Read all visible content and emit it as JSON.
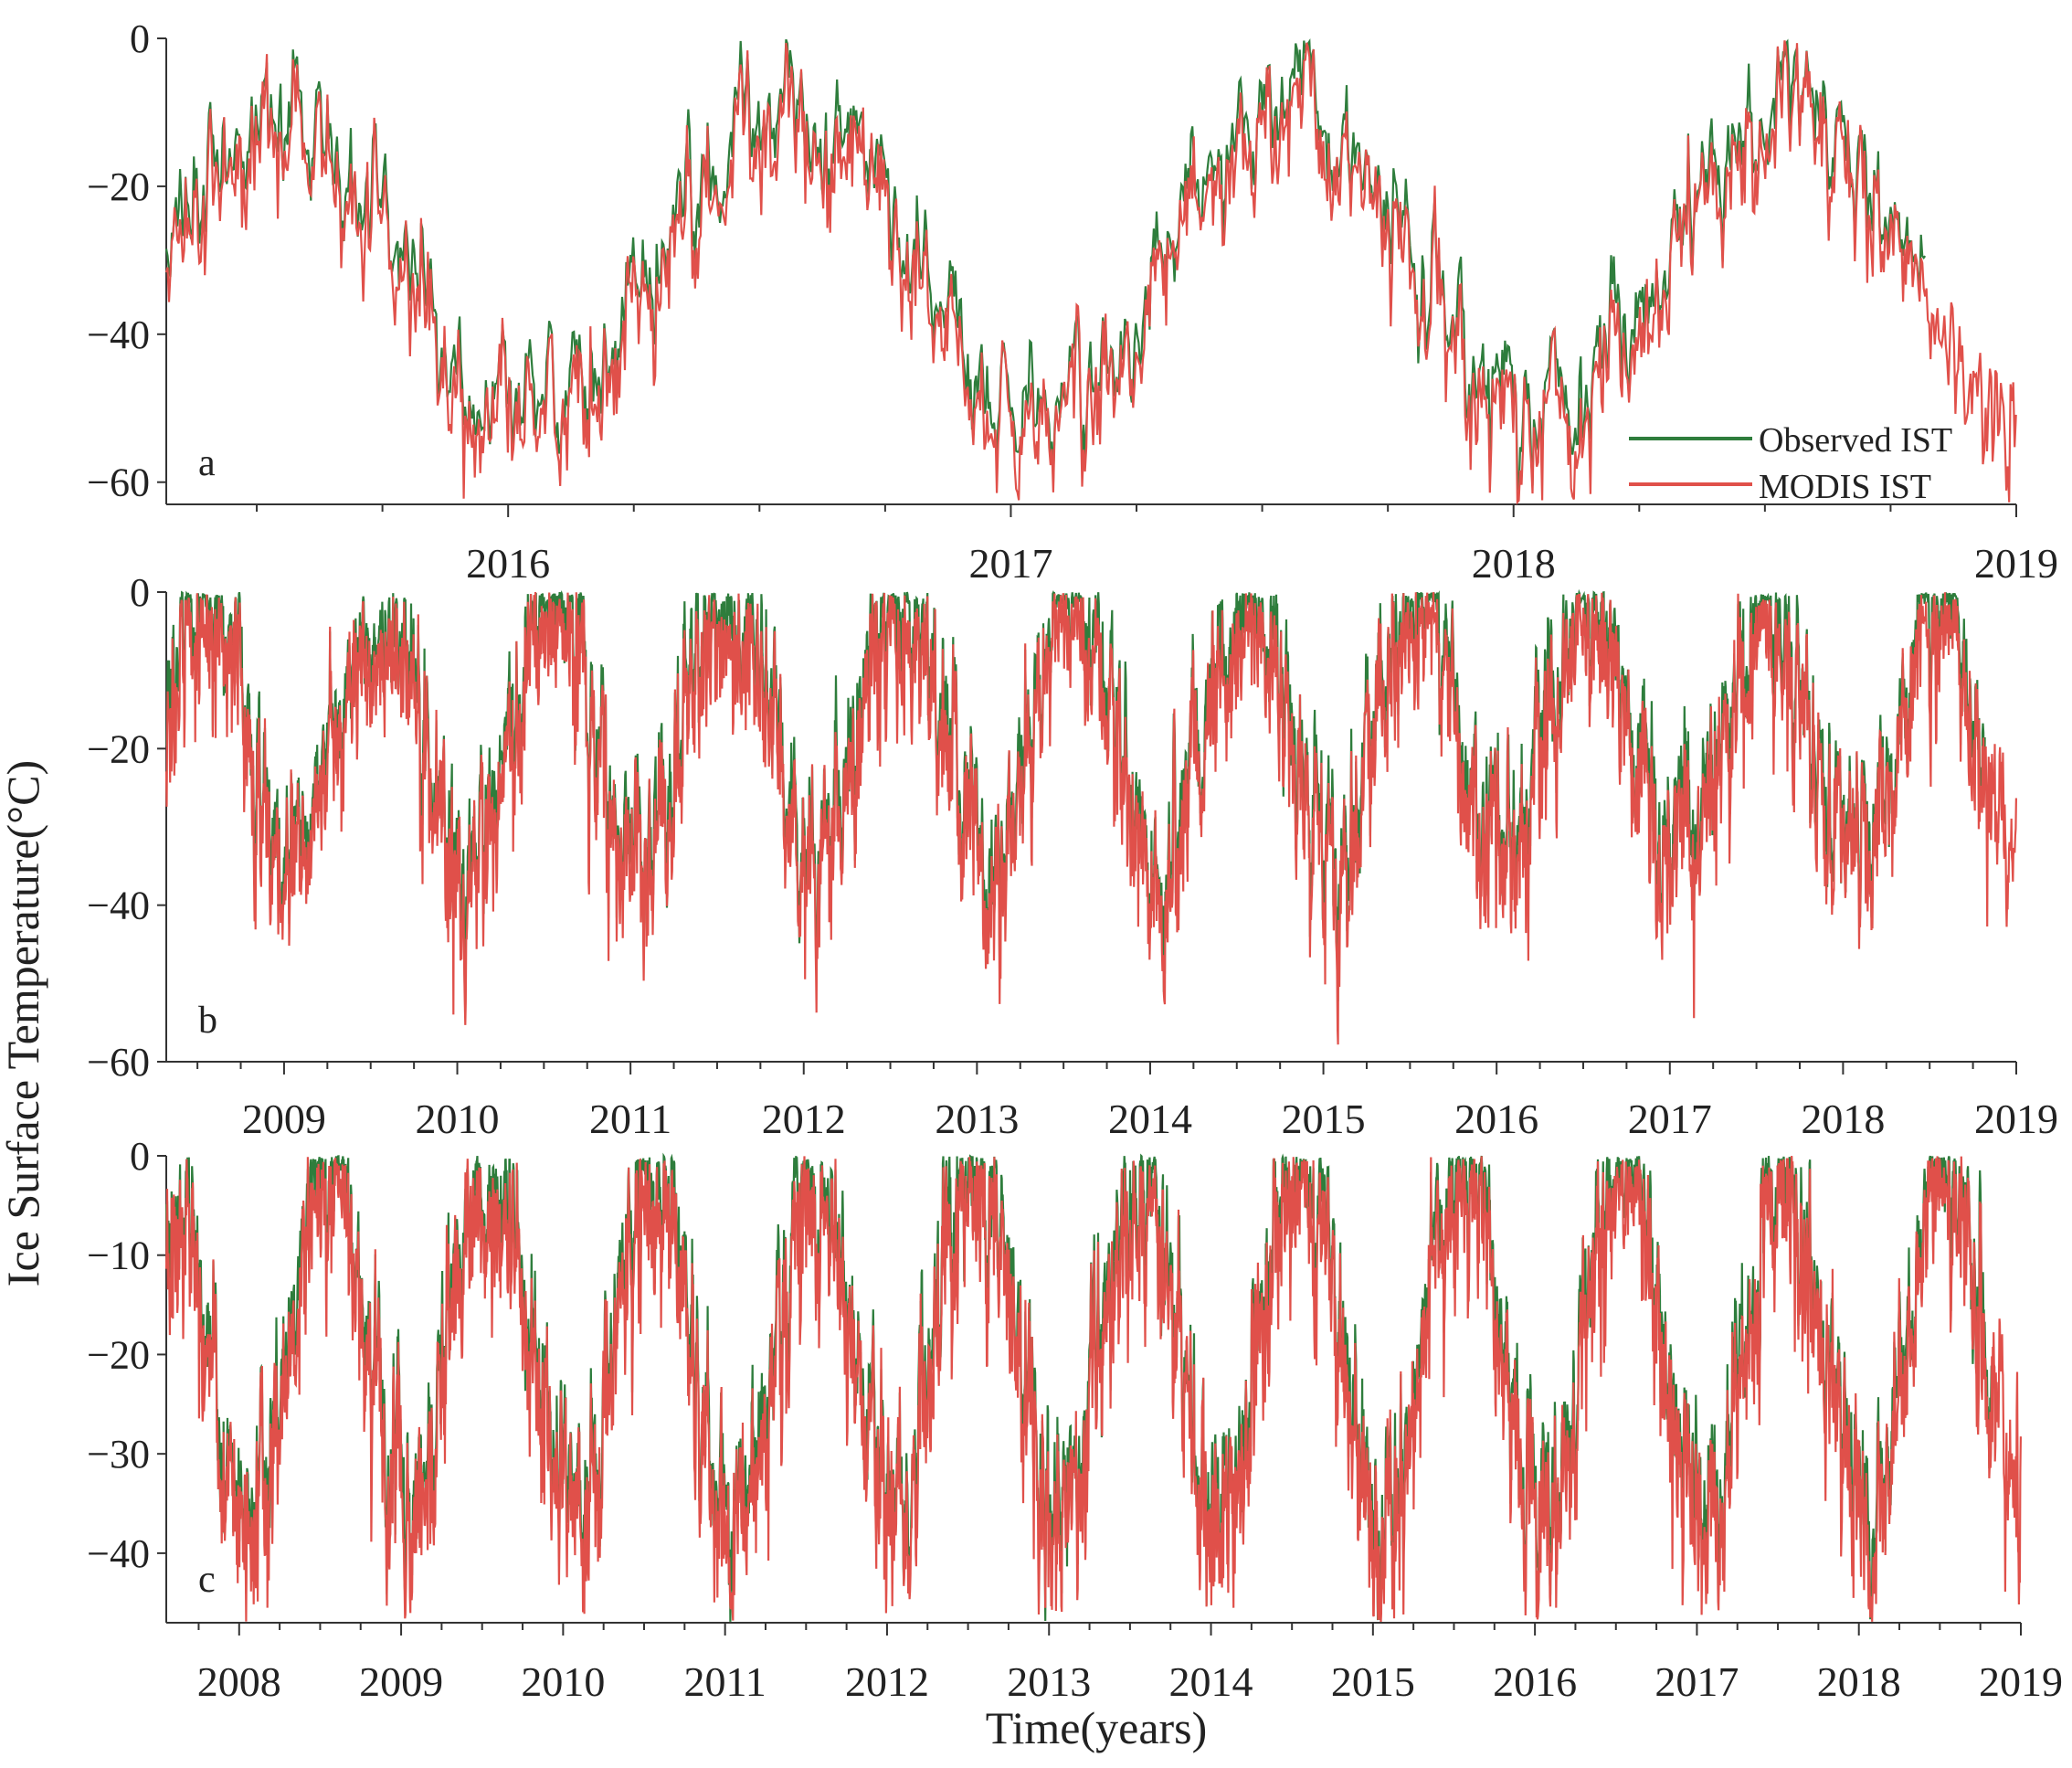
{
  "figure": {
    "ylabel": "Ice Surface Temperature(°C)",
    "xlabel": "Time(years)"
  },
  "legend": {
    "items": [
      {
        "label": "Observed IST",
        "color": "#2e7d3c"
      },
      {
        "label": "MODIS IST",
        "color": "#e0504a"
      }
    ]
  },
  "chart_data": [
    {
      "type": "line",
      "panel": "a",
      "x_start": 2015.32,
      "x_end": 2019.0,
      "year_ticks": [
        2016,
        2017,
        2018,
        2019
      ],
      "yticks": [
        0,
        -20,
        -40,
        -60
      ],
      "ylim": [
        -63,
        0
      ],
      "series_params": {
        "mean": -30,
        "amplitude": 20,
        "peak_phase": 0.55,
        "noise": 5,
        "observed_end": 2018.82,
        "seed": 11
      },
      "series": [
        {
          "name": "Observed IST",
          "color": "#2e7d3c"
        },
        {
          "name": "MODIS IST",
          "color": "#e0504a"
        }
      ]
    },
    {
      "type": "line",
      "panel": "b",
      "x_start": 2008.32,
      "x_end": 2019.0,
      "year_ticks": [
        2009,
        2010,
        2011,
        2012,
        2013,
        2014,
        2015,
        2016,
        2017,
        2018,
        2019
      ],
      "yticks": [
        0,
        -20,
        -40,
        -60
      ],
      "ylim": [
        -60,
        0
      ],
      "series_params": {
        "mean": -17,
        "amplitude": 16,
        "peak_phase": 0.55,
        "noise": 6,
        "observed_end": 2018.82,
        "seed": 23
      },
      "series": [
        {
          "name": "Observed IST",
          "color": "#2e7d3c"
        },
        {
          "name": "MODIS IST",
          "color": "#e0504a"
        }
      ]
    },
    {
      "type": "line",
      "panel": "c",
      "x_start": 2007.55,
      "x_end": 2019.0,
      "year_ticks": [
        2008,
        2009,
        2010,
        2011,
        2012,
        2013,
        2014,
        2015,
        2016,
        2017,
        2018,
        2019
      ],
      "yticks": [
        0,
        -10,
        -20,
        -30,
        -40
      ],
      "ylim": [
        -47,
        0
      ],
      "series_params": {
        "mean": -18,
        "amplitude": 17,
        "peak_phase": 0.55,
        "noise": 5,
        "observed_end": 2018.82,
        "seed": 37
      },
      "series": [
        {
          "name": "Observed IST",
          "color": "#2e7d3c"
        },
        {
          "name": "MODIS IST",
          "color": "#e0504a"
        }
      ]
    }
  ]
}
